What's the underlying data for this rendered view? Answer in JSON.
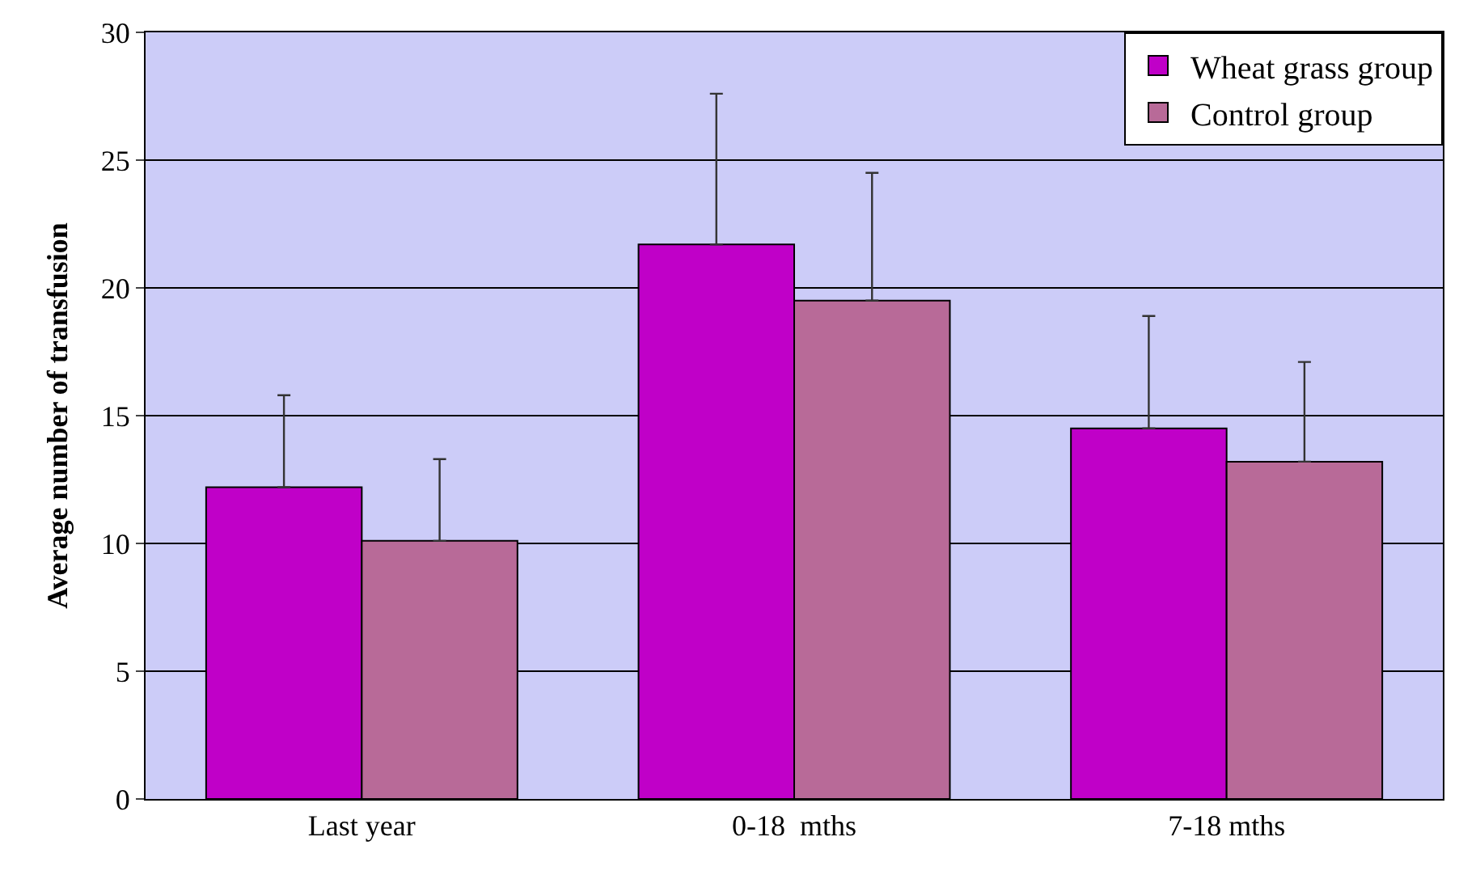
{
  "chart_data": {
    "type": "bar",
    "ylabel": "Average number of transfusion",
    "categories": [
      "Last year",
      "0-18  mths",
      "7-18 mths"
    ],
    "series": [
      {
        "name": "Wheat grass group",
        "color": "#c000c8",
        "values": [
          12.2,
          21.7,
          14.5
        ],
        "errors": [
          [
            12.2,
            15.8
          ],
          [
            21.7,
            27.6
          ],
          [
            14.5,
            18.9
          ]
        ]
      },
      {
        "name": "Control group",
        "color": "#b86a98",
        "values": [
          10.1,
          19.5,
          13.2
        ],
        "errors": [
          [
            10.1,
            13.3
          ],
          [
            19.5,
            24.5
          ],
          [
            13.2,
            17.1
          ]
        ]
      }
    ],
    "ylim": [
      0,
      30
    ],
    "yticks": [
      0,
      5,
      10,
      15,
      20,
      25,
      30
    ],
    "grid": "y",
    "legend": "top right"
  }
}
